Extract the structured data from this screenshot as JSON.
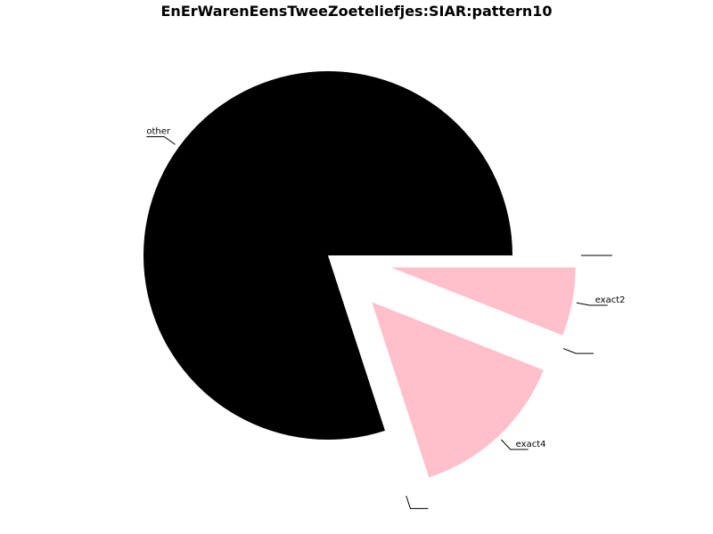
{
  "chart_data": {
    "type": "pie",
    "title": "EnErWarenEensTweeZoeteliefjes:SIAR:pattern10",
    "slices": [
      {
        "label": "other",
        "value": 80.0,
        "color": "#000000",
        "exploded": false
      },
      {
        "label": "",
        "value": 0.0,
        "color": "#ffc0cb",
        "exploded": true
      },
      {
        "label": "exact4",
        "value": 14.0,
        "color": "#ffc0cb",
        "exploded": true
      },
      {
        "label": "",
        "value": 0.0,
        "color": "#ffc0cb",
        "exploded": true
      },
      {
        "label": "exact2",
        "value": 6.0,
        "color": "#ffc0cb",
        "exploded": true
      },
      {
        "label": "",
        "value": 0.0,
        "color": "#ffc0cb",
        "exploded": true
      }
    ],
    "legend": "none",
    "grid": false
  }
}
